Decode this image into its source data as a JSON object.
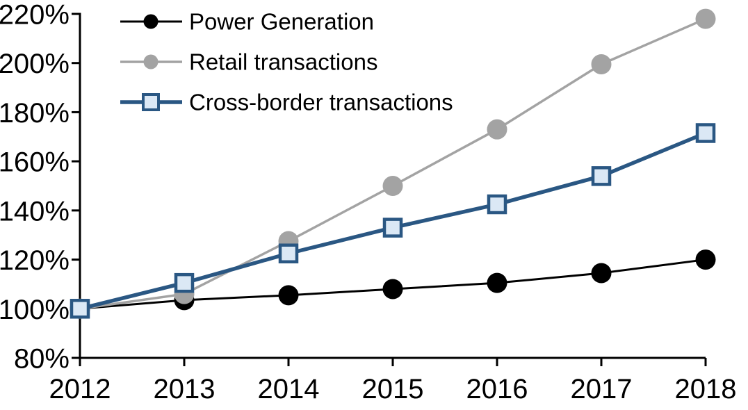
{
  "chart_data": {
    "type": "line",
    "title": "",
    "xlabel": "",
    "ylabel": "",
    "x_labels": [
      "2012",
      "2013",
      "2014",
      "2015",
      "2016",
      "2017",
      "2018"
    ],
    "y_axis": {
      "min": 80,
      "max": 220,
      "tick_step": 20,
      "tick_labels": [
        "80%",
        "100%",
        "120%",
        "140%",
        "160%",
        "180%",
        "200%",
        "220%"
      ]
    },
    "grid": false,
    "legend_position": "top-left",
    "background_color": "#ffffff",
    "axis_color": "#000000",
    "series": [
      {
        "name": "Power Generation",
        "marker": "circle",
        "line_color": "#000000",
        "marker_fill": "#000000",
        "marker_stroke": "#000000",
        "line_width": 3,
        "values": [
          100,
          103.5,
          105.5,
          108,
          110.5,
          114.5,
          120
        ]
      },
      {
        "name": "Retail transactions",
        "marker": "circle",
        "line_color": "#a3a3a3",
        "marker_fill": "#a3a3a3",
        "marker_stroke": "#a3a3a3",
        "line_width": 3.5,
        "values": [
          100,
          106,
          127.5,
          150,
          173,
          199.5,
          218
        ]
      },
      {
        "name": "Cross-border transactions",
        "marker": "square",
        "line_color": "#2a5783",
        "marker_fill": "#dbe8f5",
        "marker_stroke": "#2a5783",
        "line_width": 5.5,
        "values": [
          100,
          110.5,
          122.5,
          133,
          142.5,
          154,
          171.5
        ]
      }
    ]
  }
}
